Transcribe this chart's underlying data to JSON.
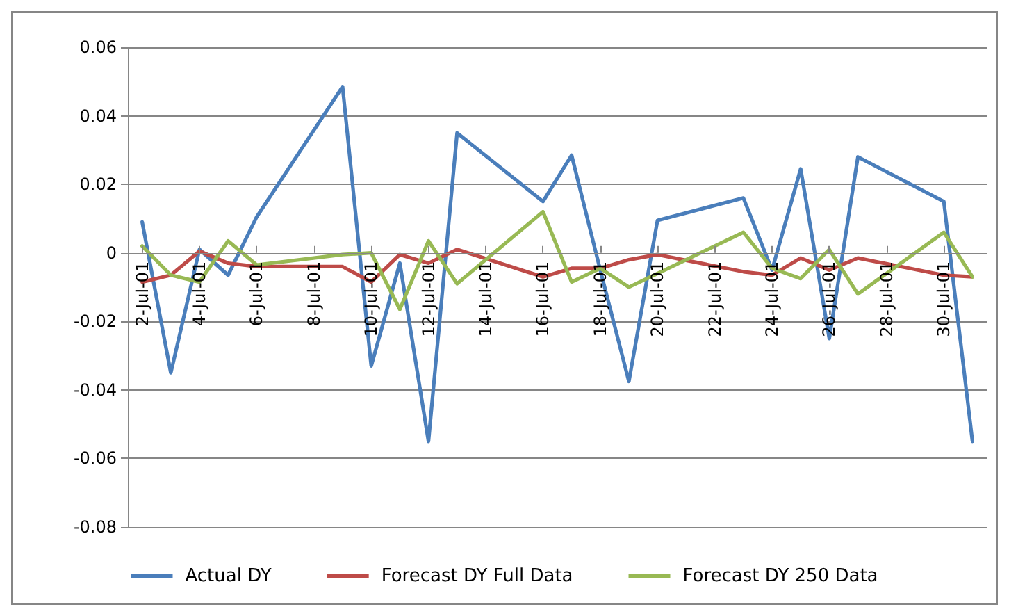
{
  "chart_data": {
    "type": "line",
    "x": [
      "--07-02",
      "--07-03",
      "--07-04",
      "--07-05",
      "--07-06",
      "--07-09",
      "--07-10",
      "--07-11",
      "--07-12",
      "--07-13",
      "--07-16",
      "--07-17",
      "--07-18",
      "--07-19",
      "--07-20",
      "--07-23",
      "--07-24",
      "--07-25",
      "--07-26",
      "--07-27",
      "--07-30",
      "--07-31"
    ],
    "series": [
      {
        "name": "Actual DY",
        "color": "#4a7ebb",
        "values": [
          0.009,
          -0.035,
          0.001,
          -0.0065,
          0.0105,
          0.0485,
          -0.033,
          -0.003,
          -0.055,
          0.035,
          0.015,
          0.0285,
          -0.005,
          -0.0375,
          0.0095,
          0.016,
          -0.005,
          0.0245,
          -0.025,
          0.028,
          0.015,
          -0.055
        ]
      },
      {
        "name": "Forecast DY Full Data",
        "color": "#be4b48",
        "values": [
          -0.0085,
          -0.0065,
          0.0005,
          -0.003,
          -0.004,
          -0.004,
          -0.0085,
          -0.0005,
          -0.003,
          0.001,
          -0.007,
          -0.0045,
          -0.0045,
          -0.002,
          -0.0005,
          -0.0055,
          -0.0065,
          -0.0015,
          -0.005,
          -0.0015,
          -0.0065,
          -0.007
        ]
      },
      {
        "name": "Forecast DY 250 Data",
        "color": "#98b954",
        "values": [
          0.002,
          -0.0065,
          -0.0085,
          0.0035,
          -0.0035,
          -0.0005,
          0,
          -0.0165,
          0.0035,
          -0.009,
          0.012,
          -0.0085,
          -0.0045,
          -0.01,
          -0.006,
          0.006,
          -0.0045,
          -0.0075,
          0.001,
          -0.012,
          0.006,
          -0.007
        ]
      }
    ],
    "xlim": [
      "--07-01T12:00",
      "--07-31T12:00"
    ],
    "xticks": [
      {
        "value": "--07-02",
        "label": "2-Jul-01"
      },
      {
        "value": "--07-04",
        "label": "4-Jul-01"
      },
      {
        "value": "--07-06",
        "label": "6-Jul-01"
      },
      {
        "value": "--07-08",
        "label": "8-Jul-01"
      },
      {
        "value": "--07-10",
        "label": "10-Jul-01"
      },
      {
        "value": "--07-12",
        "label": "12-Jul-01"
      },
      {
        "value": "--07-14",
        "label": "14-Jul-01"
      },
      {
        "value": "--07-16",
        "label": "16-Jul-01"
      },
      {
        "value": "--07-18",
        "label": "18-Jul-01"
      },
      {
        "value": "--07-20",
        "label": "20-Jul-01"
      },
      {
        "value": "--07-22",
        "label": "22-Jul-01"
      },
      {
        "value": "--07-24",
        "label": "24-Jul-01"
      },
      {
        "value": "--07-26",
        "label": "26-Jul-01"
      },
      {
        "value": "--07-28",
        "label": "28-Jul-01"
      },
      {
        "value": "--07-30",
        "label": "30-Jul-01"
      }
    ],
    "ylim": [
      -0.08,
      0.06
    ],
    "yticks": [
      -0.08,
      -0.06,
      -0.04,
      -0.02,
      0,
      0.02,
      0.04,
      0.06
    ],
    "grid": "y",
    "legend": "bottom",
    "marker": "none",
    "line_style": "solid"
  }
}
